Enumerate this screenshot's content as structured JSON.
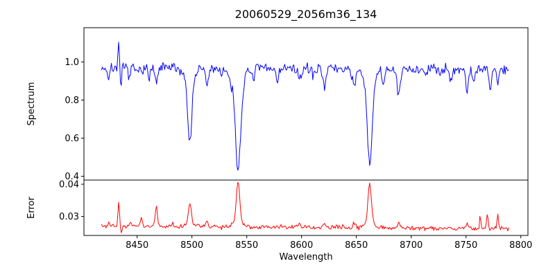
{
  "chart_data": {
    "type": "line",
    "title": "20060529_2056m36_134",
    "xlabel": "Wavelength",
    "x_ticks": [
      8450,
      8500,
      8550,
      8600,
      8650,
      8700,
      8750,
      8800
    ],
    "x_tick_labels": [
      "8450",
      "8500",
      "8550",
      "8600",
      "8650",
      "8700",
      "8750",
      "8800"
    ],
    "xlim": [
      8401.5,
      8806.5
    ],
    "x_data_range": [
      8417.5,
      8789
    ],
    "n_points": 452,
    "noise_seed": 7,
    "grid": false,
    "legend": "none",
    "subplots": [
      {
        "name": "spectrum",
        "ylabel": "Spectrum",
        "line_color": "#0000ff",
        "ylim": [
          0.38,
          1.18
        ],
        "y_ticks": [
          0.4,
          0.6,
          0.8,
          1.0
        ],
        "y_tick_labels": [
          "0.4",
          "0.6",
          "0.8",
          "1.0"
        ],
        "continuum": [
          0.97,
          0.96
        ],
        "noise_sigma": 0.014,
        "features_format": [
          "center_wavelength",
          "amplitude",
          "sigma"
        ],
        "features": [
          [
            8424.0,
            -0.05,
            1.2
          ],
          [
            8433.3,
            0.17,
            0.7
          ],
          [
            8434.9,
            -0.12,
            0.9
          ],
          [
            8443.0,
            -0.05,
            1.0
          ],
          [
            8450.0,
            -0.04,
            1.0
          ],
          [
            8461.0,
            -0.06,
            1.0
          ],
          [
            8467.5,
            -0.09,
            1.2
          ],
          [
            8498.0,
            -0.33,
            1.9
          ],
          [
            8498.0,
            -0.05,
            5.0
          ],
          [
            8514.0,
            -0.09,
            1.3
          ],
          [
            8527.0,
            -0.05,
            1.0
          ],
          [
            8536.0,
            -0.04,
            1.0
          ],
          [
            8542.1,
            -0.47,
            2.4
          ],
          [
            8542.0,
            -0.06,
            7.0
          ],
          [
            8556.0,
            -0.04,
            1.0
          ],
          [
            8578.0,
            -0.06,
            1.2
          ],
          [
            8598.0,
            -0.07,
            1.3
          ],
          [
            8611.0,
            -0.04,
            1.0
          ],
          [
            8621.0,
            -0.08,
            1.3
          ],
          [
            8648.0,
            -0.09,
            1.5
          ],
          [
            8662.1,
            -0.44,
            2.2
          ],
          [
            8662.0,
            -0.06,
            6.0
          ],
          [
            8674.8,
            -0.07,
            1.2
          ],
          [
            8688.6,
            -0.14,
            1.6
          ],
          [
            8713.0,
            -0.04,
            1.0
          ],
          [
            8736.0,
            -0.05,
            1.0
          ],
          [
            8751.0,
            -0.11,
            1.2
          ],
          [
            8757.0,
            -0.06,
            1.0
          ],
          [
            8772.0,
            -0.1,
            1.1
          ],
          [
            8779.0,
            -0.06,
            1.0
          ]
        ]
      },
      {
        "name": "error",
        "ylabel": "Error",
        "line_color": "#ff0000",
        "ylim": [
          0.0241,
          0.0413
        ],
        "y_ticks": [
          0.03,
          0.04
        ],
        "y_tick_labels": [
          "0.03",
          "0.04"
        ],
        "continuum": [
          0.0271,
          0.0262
        ],
        "noise_sigma": 0.00035,
        "features_format": [
          "center_wavelength",
          "amplitude",
          "sigma"
        ],
        "features": [
          [
            8424.0,
            0.0012,
            1.0
          ],
          [
            8433.3,
            0.0072,
            0.7
          ],
          [
            8435.5,
            -0.0018,
            0.8
          ],
          [
            8444.0,
            0.001,
            0.8
          ],
          [
            8454.0,
            0.0026,
            0.8
          ],
          [
            8467.5,
            0.0065,
            0.9
          ],
          [
            8482.0,
            0.001,
            0.8
          ],
          [
            8498.0,
            0.0068,
            1.3
          ],
          [
            8498.0,
            0.0008,
            4.0
          ],
          [
            8514.0,
            0.0018,
            0.9
          ],
          [
            8542.1,
            0.0125,
            1.6
          ],
          [
            8542.0,
            0.0013,
            5.0
          ],
          [
            8598.0,
            0.001,
            1.0
          ],
          [
            8621.0,
            0.001,
            1.0
          ],
          [
            8648.0,
            0.0013,
            1.0
          ],
          [
            8662.1,
            0.0125,
            1.6
          ],
          [
            8662.0,
            0.0013,
            5.0
          ],
          [
            8688.6,
            0.0018,
            1.1
          ],
          [
            8751.0,
            0.0015,
            0.9
          ],
          [
            8763.0,
            0.004,
            0.6
          ],
          [
            8769.5,
            0.0047,
            0.6
          ],
          [
            8779.0,
            0.0042,
            0.7
          ]
        ]
      }
    ]
  },
  "colors": {
    "background": "#ffffff",
    "axis": "#000000",
    "text": "#000000",
    "spectrum_line": "#0000ff",
    "error_line": "#ff0000"
  }
}
